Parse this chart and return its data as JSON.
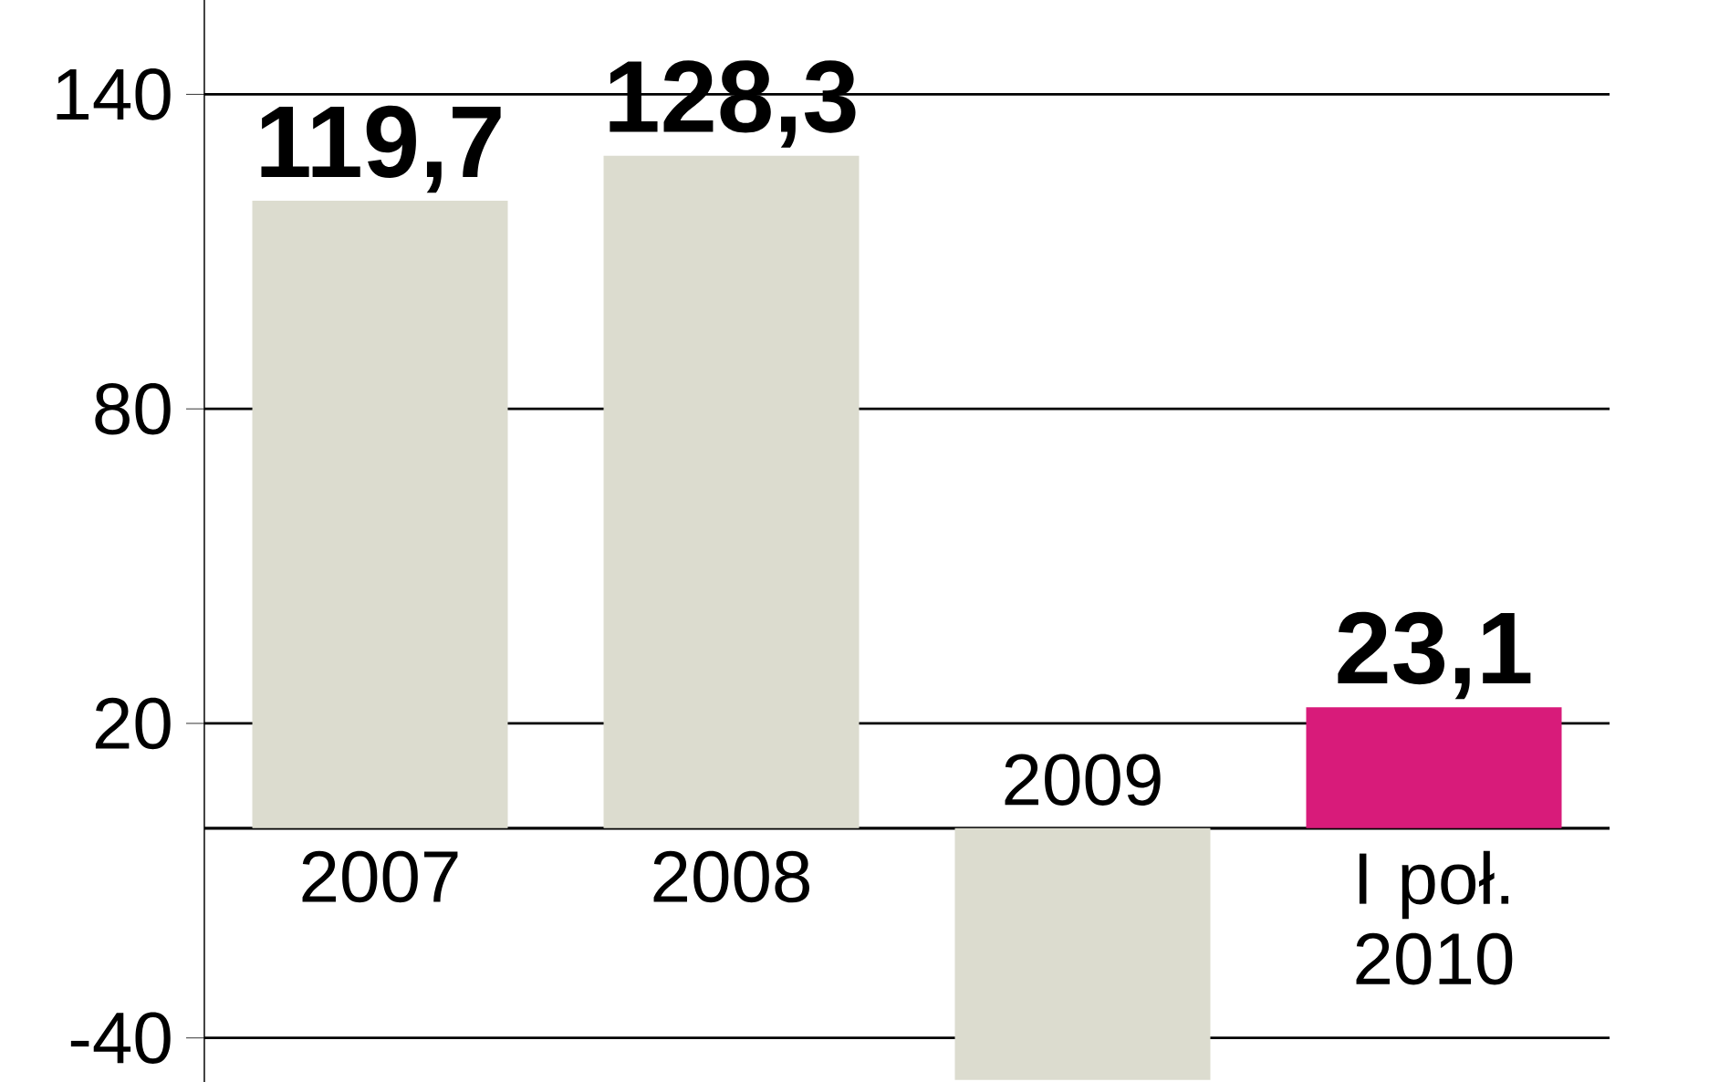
{
  "chart_data": {
    "type": "bar",
    "categories": [
      "2007",
      "2008",
      "2009",
      "I poł. 2010"
    ],
    "values": [
      119.7,
      128.3,
      -48,
      23.1
    ],
    "colors": [
      "#dcdccf",
      "#dcdccf",
      "#dcdccf",
      "#d81b7a"
    ],
    "value_labels": [
      "119,7",
      "128,3",
      null,
      "23,1"
    ],
    "ylim": [
      -48.4,
      158
    ],
    "yticks": [
      -40,
      20,
      80,
      140
    ],
    "grid": "y"
  }
}
